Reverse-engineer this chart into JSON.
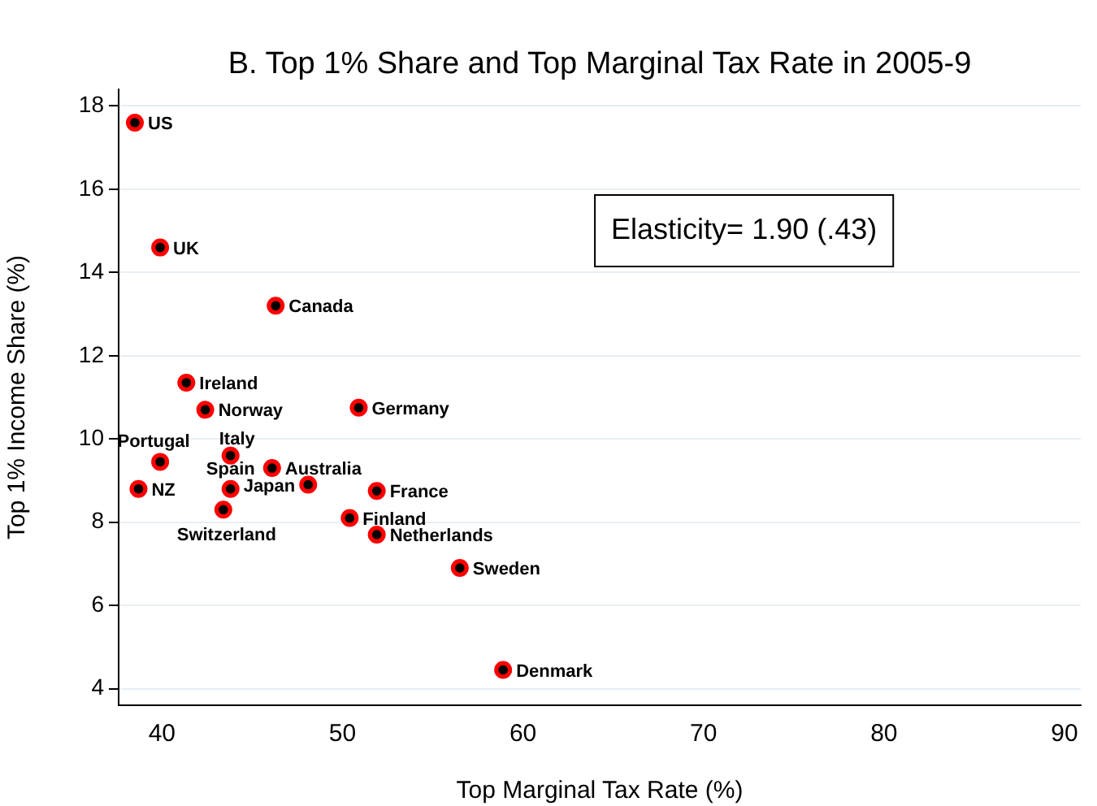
{
  "chart_data": {
    "type": "scatter",
    "title": "B. Top 1% Share and Top Marginal Tax Rate in 2005-9",
    "xlabel": "Top Marginal Tax Rate (%)",
    "ylabel": "Top 1% Income Share (%)",
    "x": [
      38.5,
      39.9,
      46.3,
      41.35,
      42.4,
      50.9,
      43.8,
      39.9,
      46.1,
      38.7,
      43.8,
      48.1,
      51.9,
      43.4,
      50.4,
      51.9,
      56.5,
      58.9
    ],
    "series": [
      {
        "color": "#ff0000",
        "values": [
          17.6,
          14.6,
          13.2,
          11.35,
          10.7,
          10.75,
          9.6,
          9.45,
          9.3,
          8.8,
          8.8,
          8.9,
          8.75,
          8.3,
          8.1,
          7.7,
          6.9,
          4.45
        ]
      }
    ],
    "xlim": [
      37.6,
      90.9
    ],
    "xticks": [
      40,
      50,
      60,
      70,
      80,
      90
    ],
    "ylim": [
      3.6,
      18.4
    ],
    "yticks": [
      4,
      6,
      8,
      10,
      12,
      14,
      16,
      18
    ],
    "grid": "y",
    "legend": false,
    "marker": "circle",
    "annotations": [
      {
        "text": "US",
        "x": 38.5,
        "y": 17.6
      },
      {
        "text": "UK",
        "x": 39.9,
        "y": 14.6
      },
      {
        "text": "Canada",
        "x": 46.3,
        "y": 13.2
      },
      {
        "text": "Ireland",
        "x": 41.35,
        "y": 11.35
      },
      {
        "text": "Norway",
        "x": 42.4,
        "y": 10.7
      },
      {
        "text": "Germany",
        "x": 50.9,
        "y": 10.75
      },
      {
        "text": "Italy",
        "x": 43.8,
        "y": 9.6
      },
      {
        "text": "Portugal",
        "x": 39.9,
        "y": 9.45
      },
      {
        "text": "Australia",
        "x": 46.1,
        "y": 9.3
      },
      {
        "text": "NZ",
        "x": 38.7,
        "y": 8.8
      },
      {
        "text": "Spain",
        "x": 43.8,
        "y": 8.8
      },
      {
        "text": "Japan",
        "x": 48.1,
        "y": 8.9
      },
      {
        "text": "France",
        "x": 51.9,
        "y": 8.75
      },
      {
        "text": "Switzerland",
        "x": 43.4,
        "y": 8.3
      },
      {
        "text": "Finland",
        "x": 50.4,
        "y": 8.1
      },
      {
        "text": "Netherlands",
        "x": 51.9,
        "y": 7.7
      },
      {
        "text": "Sweden",
        "x": 56.5,
        "y": 6.9
      },
      {
        "text": "Denmark",
        "x": 58.9,
        "y": 4.45
      },
      "Elasticity= 1.90 (.43)"
    ]
  }
}
